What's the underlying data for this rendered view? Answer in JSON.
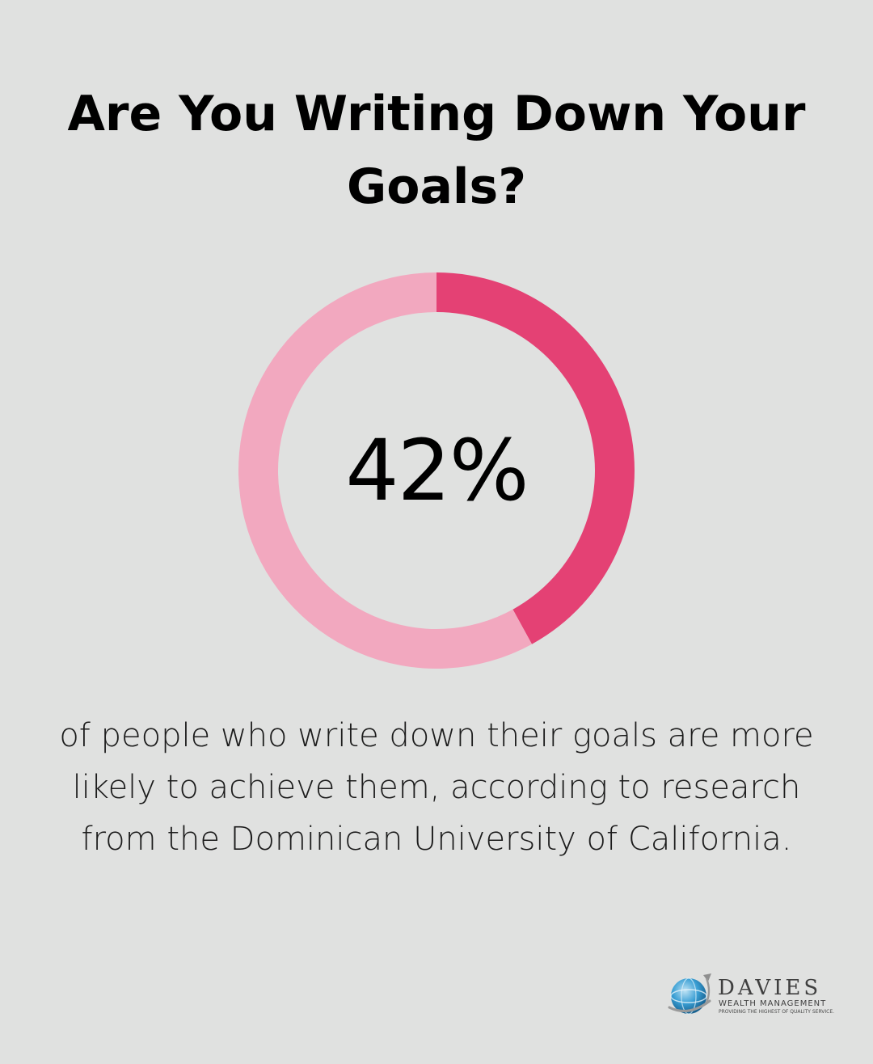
{
  "title": "Are You Writing Down Your Goals?",
  "caption": "of people who write down their goals are more likely to achieve them, according to research from the Dominican University of California.",
  "colors": {
    "background": "#e0e1e0",
    "highlight": "#e44174",
    "remainder": "#f2a8bf"
  },
  "chart_data": {
    "type": "pie",
    "variant": "donut",
    "center_label": "42%",
    "slices": [
      {
        "value": 42,
        "color": "#e44174"
      },
      {
        "value": 58,
        "color": "#f2a8bf"
      }
    ]
  },
  "logo": {
    "name": "DAVIES",
    "subtitle": "WEALTH MANAGEMENT",
    "tagline": "PROVIDING THE HIGHEST OF QUALITY SERVICE.",
    "icon": "globe-icon"
  }
}
